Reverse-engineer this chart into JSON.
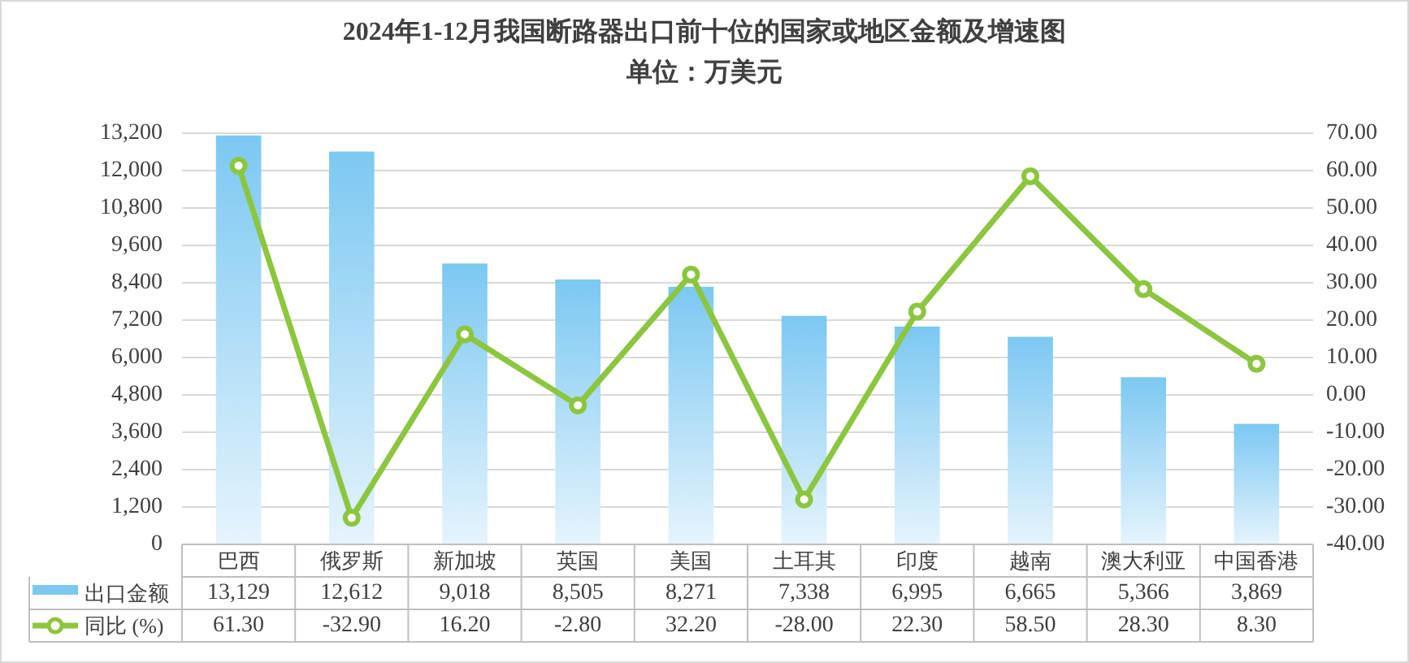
{
  "chart_data": {
    "type": "bar",
    "title": "2024年1-12月我国断路器出口前十位的国家或地区金额及增速图",
    "subtitle": "单位：万美元",
    "categories": [
      "巴西",
      "俄罗斯",
      "新加坡",
      "英国",
      "美国",
      "土耳其",
      "印度",
      "越南",
      "澳大利亚",
      "中国香港"
    ],
    "series": [
      {
        "name": "出口金额",
        "color": "#7cc8f2",
        "values": [
          13129,
          12612,
          9018,
          8505,
          8271,
          7338,
          6995,
          6665,
          5366,
          3869
        ],
        "value_labels": [
          "13,129",
          "12,612",
          "9,018",
          "8,505",
          "8,271",
          "7,338",
          "6,995",
          "6,665",
          "5,366",
          "3,869"
        ]
      },
      {
        "name": "同比 (%)",
        "type": "line",
        "axis": "y2",
        "color": "#8cc63f",
        "marker": "circle",
        "values": [
          61.3,
          -32.9,
          16.2,
          -2.8,
          32.2,
          -28.0,
          22.3,
          58.5,
          28.3,
          8.3
        ],
        "value_labels": [
          "61.30",
          "-32.90",
          "16.20",
          "-2.80",
          "32.20",
          "-28.00",
          "22.30",
          "58.50",
          "28.30",
          "8.30"
        ]
      }
    ],
    "ylim": [
      0,
      13200
    ],
    "yticks": [
      0,
      {
        "value": 1200,
        "label": "1,200"
      },
      {
        "value": 2400,
        "label": "2,400"
      },
      {
        "value": 3600,
        "label": "3,600"
      },
      {
        "value": 4800,
        "label": "4,800"
      },
      {
        "value": 6000,
        "label": "6,000"
      },
      {
        "value": 7200,
        "label": "7,200"
      },
      {
        "value": 8400,
        "label": "8,400"
      },
      {
        "value": 9600,
        "label": "9,600"
      },
      {
        "value": 10800,
        "label": "10,800"
      },
      {
        "value": 12000,
        "label": "12,000"
      },
      {
        "value": 13200,
        "label": "13,200"
      }
    ],
    "y2lim": [
      -40,
      70
    ],
    "y2ticks": [
      {
        "value": -40,
        "label": "-40.00"
      },
      {
        "value": -30,
        "label": "-30.00"
      },
      {
        "value": -20,
        "label": "-20.00"
      },
      {
        "value": -10,
        "label": "-10.00"
      },
      {
        "value": 0,
        "label": "0.00"
      },
      {
        "value": 10,
        "label": "10.00"
      },
      {
        "value": 20,
        "label": "20.00"
      },
      {
        "value": 30,
        "label": "30.00"
      },
      {
        "value": 40,
        "label": "40.00"
      },
      {
        "value": 50,
        "label": "50.00"
      },
      {
        "value": 60,
        "label": "60.00"
      },
      {
        "value": 70,
        "label": "70.00"
      }
    ],
    "grid": "y",
    "legend": "bottom"
  }
}
